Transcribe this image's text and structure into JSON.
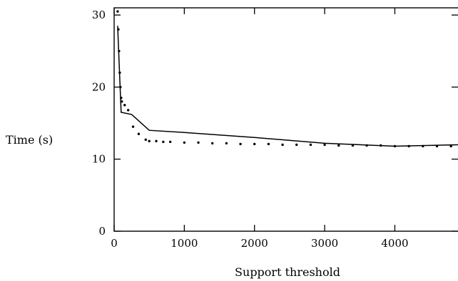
{
  "chart_data": {
    "type": "line",
    "title": "",
    "xlabel": "Support threshold",
    "ylabel": "Time (s)",
    "xlim": [
      0,
      4900
    ],
    "ylim": [
      0,
      31
    ],
    "xticks": [
      0,
      1000,
      2000,
      3000,
      4000
    ],
    "yticks": [
      0,
      10,
      20,
      30
    ],
    "grid": false,
    "legend": "none",
    "series": [
      {
        "style": "solid",
        "color": "#000000",
        "x": [
          50,
          100,
          250,
          500,
          1000,
          2000,
          3000,
          4000,
          4900
        ],
        "y": [
          28.5,
          16.5,
          16.2,
          14.0,
          13.7,
          13.0,
          12.2,
          11.8,
          12.0
        ]
      },
      {
        "style": "dotted",
        "color": "#000000",
        "x": [
          50,
          60,
          70,
          80,
          90,
          100,
          110,
          150,
          200,
          270,
          350,
          450,
          500,
          600,
          700,
          800,
          1000,
          1200,
          1400,
          1600,
          1800,
          2000,
          2200,
          2400,
          2600,
          2800,
          3000,
          3200,
          3400,
          3600,
          3800,
          4000,
          4200,
          4400,
          4600,
          4800
        ],
        "y": [
          30.5,
          28.0,
          25.0,
          22.0,
          20.0,
          18.5,
          18.0,
          17.5,
          16.8,
          14.5,
          13.5,
          12.7,
          12.5,
          12.5,
          12.4,
          12.4,
          12.3,
          12.3,
          12.2,
          12.2,
          12.1,
          12.1,
          12.1,
          12.0,
          12.0,
          12.0,
          12.0,
          11.9,
          11.9,
          11.9,
          11.9,
          11.8,
          11.8,
          11.8,
          11.8,
          11.8
        ]
      }
    ]
  }
}
